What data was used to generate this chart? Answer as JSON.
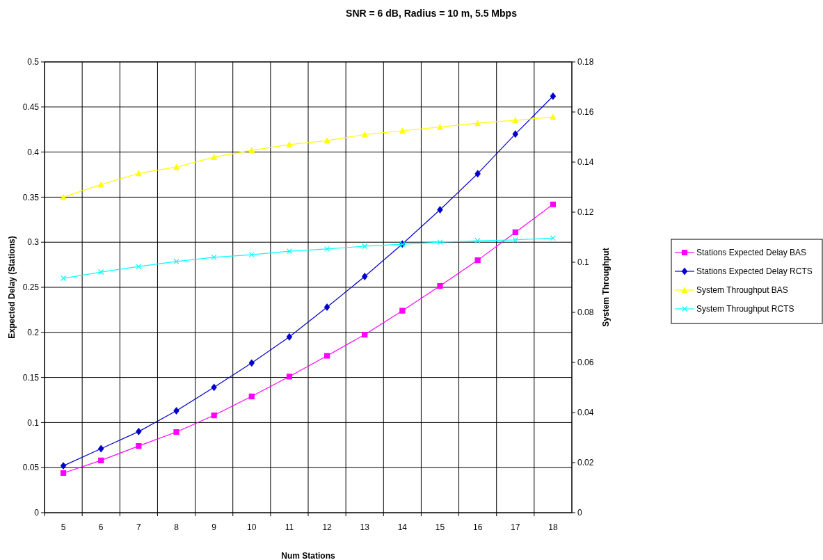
{
  "chart_data": {
    "type": "line",
    "title": "SNR = 6 dB, Radius = 10 m, 5.5 Mbps",
    "xlabel": "Num Stations",
    "ylabel": "Expected Delay (Stations)",
    "y2label": "System Throughput",
    "categories": [
      "5",
      "6",
      "7",
      "8",
      "9",
      "10",
      "11",
      "12",
      "13",
      "14",
      "15",
      "16",
      "17",
      "18"
    ],
    "ylim": [
      0,
      0.5
    ],
    "yticks": [
      0,
      0.05,
      0.1,
      0.15,
      0.2,
      0.25,
      0.3,
      0.35,
      0.4,
      0.45,
      0.5
    ],
    "y2lim": [
      0,
      0.18
    ],
    "y2ticks": [
      0,
      0.02,
      0.04,
      0.06,
      0.08,
      0.1,
      0.12,
      0.14,
      0.16,
      0.18
    ],
    "grid": true,
    "legend": "right",
    "line_style": "solid",
    "series": [
      {
        "name": "Stations Expected Delay BAS",
        "color": "#ff00ff",
        "marker": "square",
        "values": [
          0.044,
          0.058,
          0.074,
          0.0895,
          0.108,
          0.129,
          0.151,
          0.174,
          0.1975,
          0.224,
          0.2515,
          0.28,
          0.311,
          0.342
        ]
      },
      {
        "name": "Stations Expected Delay RCTS",
        "color": "#0000cc",
        "marker": "diamond",
        "values": [
          0.052,
          0.071,
          0.09,
          0.113,
          0.139,
          0.166,
          0.195,
          0.228,
          0.262,
          0.298,
          0.336,
          0.376,
          0.42,
          0.462
        ]
      },
      {
        "name": "System Throughput BAS",
        "color": "#ffff00",
        "marker": "triangle",
        "axis": "y2",
        "values": [
          0.126,
          0.131,
          0.1355,
          0.138,
          0.142,
          0.1447,
          0.147,
          0.1486,
          0.151,
          0.1525,
          0.154,
          0.1555,
          0.1567,
          0.158
        ]
      },
      {
        "name": "System Throughput RCTS",
        "color": "#00ffff",
        "marker": "cross",
        "axis": "y2",
        "values": [
          0.0936,
          0.0961,
          0.0983,
          0.1003,
          0.102,
          0.103,
          0.1044,
          0.1053,
          0.1064,
          0.1072,
          0.108,
          0.1086,
          0.1089,
          0.1097
        ]
      }
    ]
  }
}
